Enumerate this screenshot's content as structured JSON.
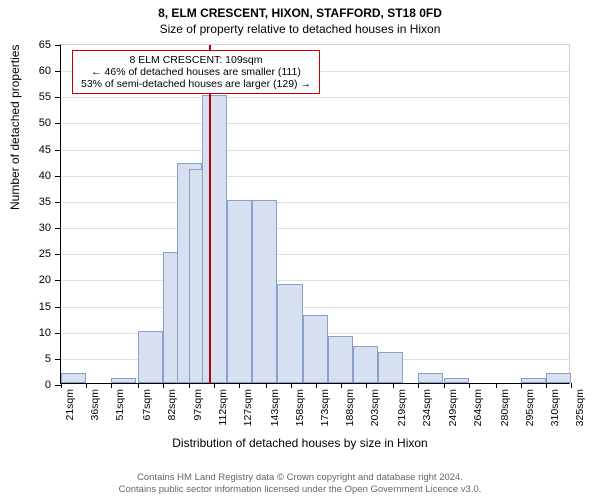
{
  "title_main": "8, ELM CRESCENT, HIXON, STAFFORD, ST18 0FD",
  "title_sub": "Size of property relative to detached houses in Hixon",
  "y_axis_title": "Number of detached properties",
  "x_axis_title": "Distribution of detached houses by size in Hixon",
  "callout": {
    "line1": "8 ELM CRESCENT: 109sqm",
    "line2": "← 46% of detached houses are smaller (111)",
    "line3": "53% of semi-detached houses are larger (129) →",
    "border_color": "#c00000"
  },
  "chart": {
    "type": "histogram",
    "background_color": "#ffffff",
    "grid_color": "#e0e0e0",
    "axis_color": "#000000",
    "bar_fill": "#d6e0f0",
    "bar_stroke": "#8aa0c8",
    "marker_color": "#c00000",
    "marker_x": 109,
    "y": {
      "min": 0,
      "max": 65,
      "step": 5
    },
    "x_labels": [
      "21sqm",
      "36sqm",
      "51sqm",
      "67sqm",
      "82sqm",
      "97sqm",
      "112sqm",
      "127sqm",
      "143sqm",
      "158sqm",
      "173sqm",
      "188sqm",
      "203sqm",
      "219sqm",
      "234sqm",
      "249sqm",
      "264sqm",
      "280sqm",
      "295sqm",
      "310sqm",
      "325sqm"
    ],
    "x_range": {
      "min": 21,
      "max": 325
    },
    "bars": [
      {
        "x": 21,
        "h": 2
      },
      {
        "x": 51,
        "h": 1
      },
      {
        "x": 67,
        "h": 10
      },
      {
        "x": 82,
        "h": 25
      },
      {
        "x": 90,
        "h": 42
      },
      {
        "x": 97,
        "h": 41
      },
      {
        "x": 105,
        "h": 55
      },
      {
        "x": 120,
        "h": 35
      },
      {
        "x": 135,
        "h": 35
      },
      {
        "x": 150,
        "h": 19
      },
      {
        "x": 165,
        "h": 13
      },
      {
        "x": 180,
        "h": 9
      },
      {
        "x": 195,
        "h": 7
      },
      {
        "x": 210,
        "h": 6
      },
      {
        "x": 234,
        "h": 2
      },
      {
        "x": 249,
        "h": 1
      },
      {
        "x": 295,
        "h": 1
      },
      {
        "x": 310,
        "h": 2
      }
    ],
    "bar_width_units": 15
  },
  "footer": {
    "line1": "Contains HM Land Registry data © Crown copyright and database right 2024.",
    "line2": "Contains public sector information licensed under the Open Government Licence v3.0."
  },
  "fonts": {
    "title": 12,
    "axis_title": 12,
    "tick": 11,
    "xtick": 10.5,
    "callout": 10.5,
    "footer": 9.5
  }
}
